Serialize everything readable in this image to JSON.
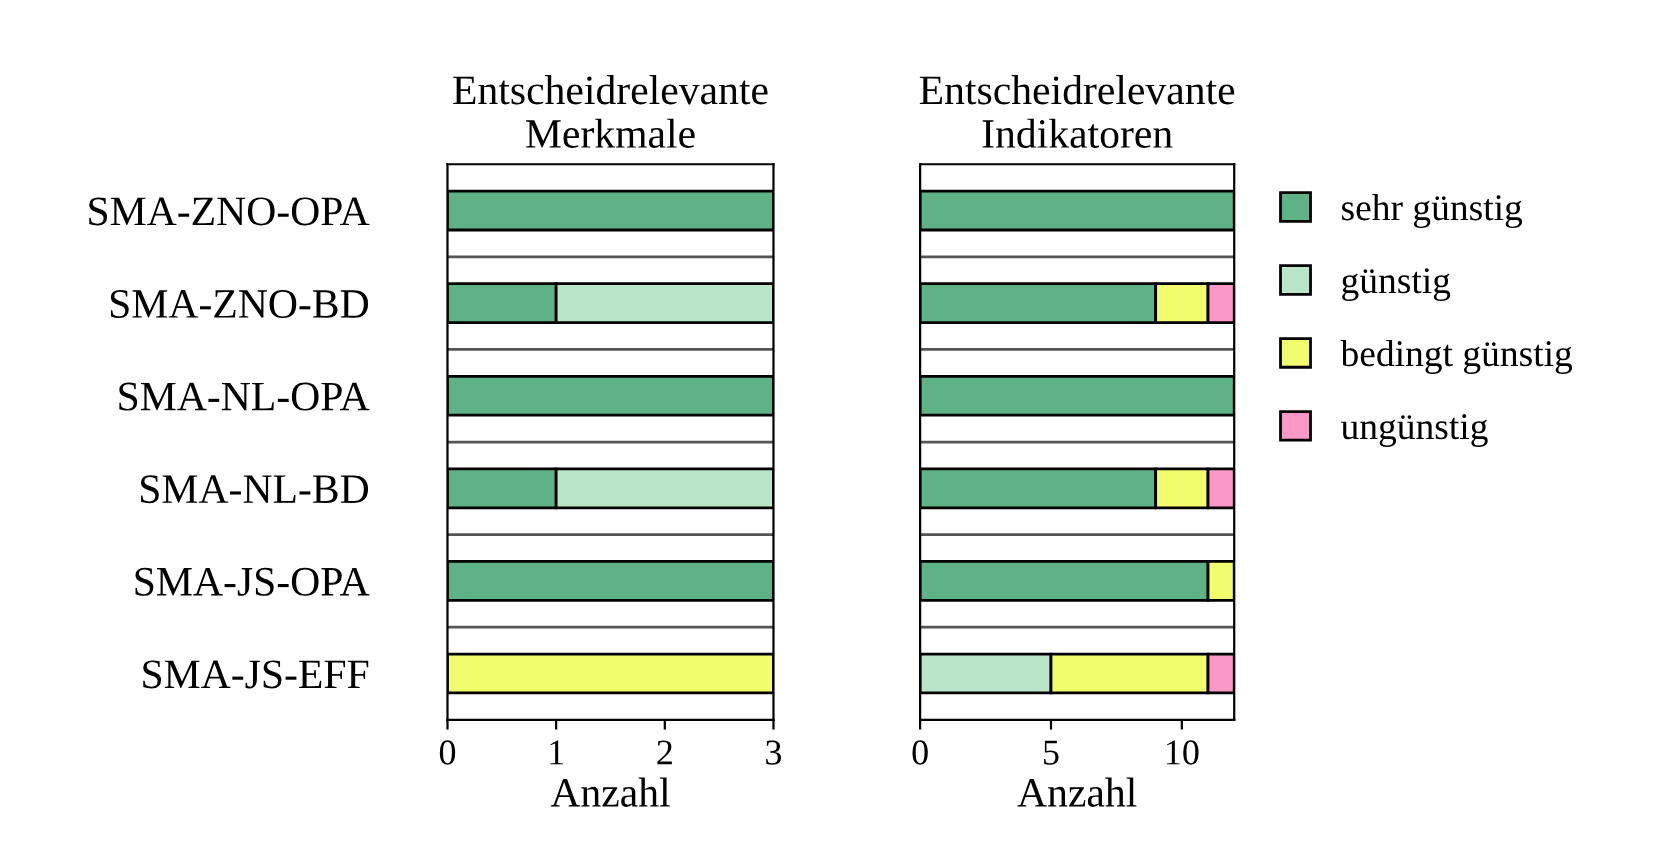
{
  "chart_data": [
    {
      "type": "bar",
      "orientation": "horizontal",
      "stacked": true,
      "title": "Entscheidrelevante\nMerkmale",
      "xlabel": "Anzahl",
      "categories": [
        "SMA-ZNO-OPA",
        "SMA-ZNO-BD",
        "SMA-NL-OPA",
        "SMA-NL-BD",
        "SMA-JS-OPA",
        "SMA-JS-EFF"
      ],
      "xlim": [
        0,
        3
      ],
      "xticks": [
        0,
        1,
        2,
        3
      ],
      "grid": false,
      "legend": false,
      "series": [
        {
          "color": "#5fb285",
          "values": [
            3,
            1,
            3,
            1,
            3,
            0
          ]
        },
        {
          "color": "#bbe5c8",
          "values": [
            0,
            2,
            0,
            2,
            0,
            0
          ]
        },
        {
          "color": "#f1fd6d",
          "values": [
            0,
            0,
            0,
            0,
            0,
            3
          ]
        },
        {
          "color": "#fb98c8",
          "values": [
            0,
            0,
            0,
            0,
            0,
            0
          ]
        }
      ]
    },
    {
      "type": "bar",
      "orientation": "horizontal",
      "stacked": true,
      "title": "Entscheidrelevante\nIndikatoren",
      "xlabel": "Anzahl",
      "categories": [
        null,
        null,
        null,
        null,
        null,
        null
      ],
      "xlim": [
        0,
        12
      ],
      "xticks": [
        0,
        5,
        10
      ],
      "grid": false,
      "legend": "right",
      "series": [
        {
          "name": "sehr günstig",
          "color": "#5fb285",
          "values": [
            12,
            9,
            12,
            9,
            11,
            0
          ]
        },
        {
          "name": "günstig",
          "color": "#bbe5c8",
          "values": [
            0,
            0,
            0,
            0,
            0,
            5
          ]
        },
        {
          "name": "bedingt günstig",
          "color": "#f1fd6d",
          "values": [
            0,
            2,
            0,
            2,
            1,
            6
          ]
        },
        {
          "name": "ungünstig",
          "color": "#fb98c8",
          "values": [
            0,
            1,
            0,
            1,
            0,
            1
          ]
        }
      ]
    }
  ]
}
